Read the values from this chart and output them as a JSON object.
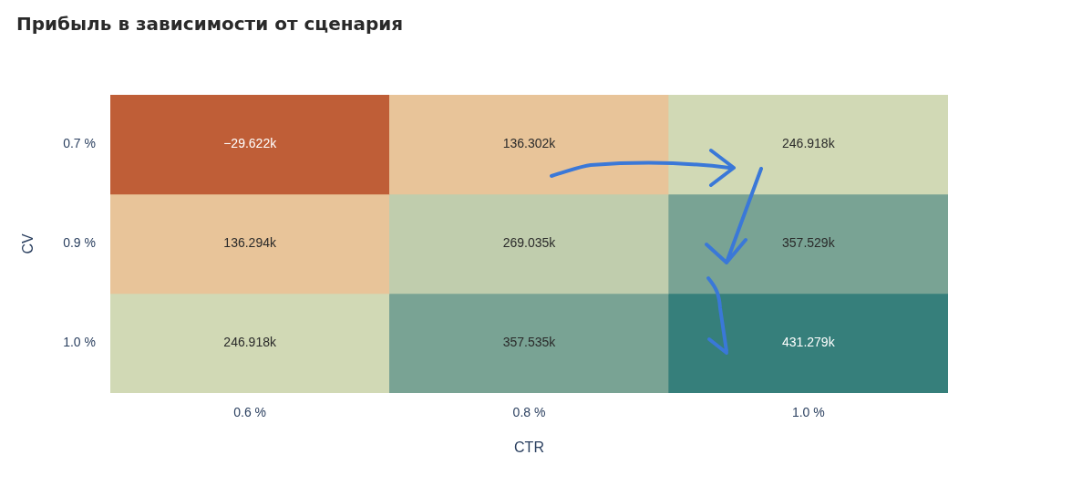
{
  "chart_data": {
    "type": "heatmap",
    "title": "Прибыль в зависимости от сценария",
    "xlabel": "CTR",
    "ylabel": "CV",
    "categories": [
      "0.6 %",
      "0.8 %",
      "1.0 %"
    ],
    "y_categories": [
      "0.7 %",
      "0.9 %",
      "1.0 %"
    ],
    "cells": [
      [
        -29622,
        136302,
        246918
      ],
      [
        136294,
        269035,
        357529
      ],
      [
        246918,
        357535,
        431279
      ]
    ],
    "cell_labels": [
      [
        "−29.622k",
        "136.302k",
        "246.918k"
      ],
      [
        "136.294k",
        "269.035k",
        "357.529k"
      ],
      [
        "246.918k",
        "357.535k",
        "431.279k"
      ]
    ]
  }
}
